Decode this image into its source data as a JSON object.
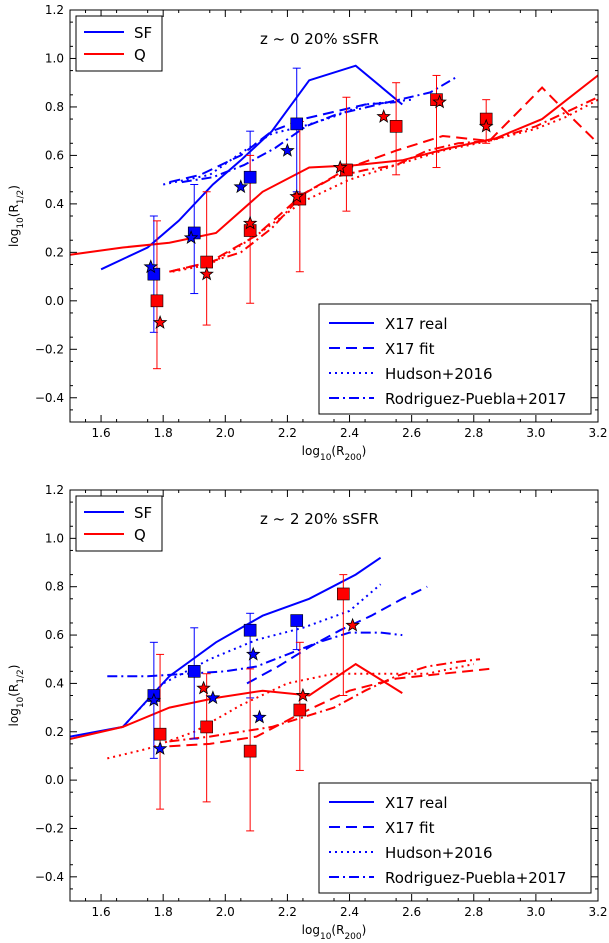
{
  "chart_data": [
    {
      "type": "line",
      "title": "z ~ 0    20% sSFR",
      "xlabel": "log10(R200)",
      "ylabel": "log10(R1/2)",
      "xlim": [
        1.5,
        3.2
      ],
      "ylim": [
        -0.5,
        1.2
      ],
      "xticks": [
        "1.6",
        "1.8",
        "2.0",
        "2.2",
        "2.4",
        "2.6",
        "2.8",
        "3.0",
        "3.2"
      ],
      "yticks": [
        "−0.4",
        "−0.2",
        "0.0",
        "0.2",
        "0.4",
        "0.6",
        "0.8",
        "1.0",
        "1.2"
      ],
      "grid": false,
      "colors": {
        "SF": "#0000ff",
        "Q": "#ff0000"
      },
      "legend_groups": {
        "placement_top": "upper left",
        "top": [
          "SF",
          "Q"
        ],
        "placement_bottom": "lower right",
        "bottom": [
          {
            "label": "X17 real",
            "style": "solid"
          },
          {
            "label": "X17 fit",
            "style": "dashed"
          },
          {
            "label": "Hudson+2016",
            "style": "dotted"
          },
          {
            "label": "Rodriguez-Puebla+2017",
            "style": "dashdot"
          }
        ]
      },
      "series": [
        {
          "group": "SF",
          "style": "solid",
          "x": [
            1.6,
            1.75,
            1.85,
            1.96,
            2.05,
            2.15,
            2.27,
            2.42,
            2.57
          ],
          "y": [
            0.13,
            0.22,
            0.33,
            0.48,
            0.58,
            0.7,
            0.91,
            0.97,
            0.81
          ]
        },
        {
          "group": "SF",
          "style": "dashed",
          "x": [
            1.82,
            1.92,
            2.05,
            2.15,
            2.25,
            2.35,
            2.45,
            2.55
          ],
          "y": [
            0.49,
            0.52,
            0.6,
            0.7,
            0.75,
            0.78,
            0.81,
            0.82
          ]
        },
        {
          "group": "SF",
          "style": "dotted",
          "x": [
            1.8,
            1.95,
            2.05,
            2.15,
            2.25,
            2.35,
            2.45,
            2.6
          ],
          "y": [
            0.48,
            0.52,
            0.61,
            0.69,
            0.72,
            0.76,
            0.81,
            0.83
          ]
        },
        {
          "group": "SF",
          "style": "dashdot",
          "x": [
            1.86,
            1.96,
            2.06,
            2.16,
            2.26,
            2.36,
            2.46,
            2.56,
            2.66,
            2.74
          ],
          "y": [
            0.49,
            0.51,
            0.56,
            0.63,
            0.72,
            0.77,
            0.8,
            0.83,
            0.86,
            0.92
          ]
        },
        {
          "group": "Q",
          "style": "solid",
          "x": [
            1.5,
            1.67,
            1.82,
            1.97,
            2.12,
            2.27,
            2.42,
            2.57,
            2.72,
            2.87,
            3.02,
            3.2
          ],
          "y": [
            0.19,
            0.22,
            0.24,
            0.28,
            0.45,
            0.55,
            0.56,
            0.58,
            0.63,
            0.67,
            0.75,
            0.93
          ]
        },
        {
          "group": "Q",
          "style": "dashed",
          "x": [
            1.82,
            1.95,
            2.1,
            2.25,
            2.4,
            2.55,
            2.7,
            2.85,
            3.02,
            3.12,
            3.2
          ],
          "y": [
            0.12,
            0.16,
            0.27,
            0.44,
            0.55,
            0.62,
            0.68,
            0.66,
            0.88,
            0.75,
            0.65
          ]
        },
        {
          "group": "Q",
          "style": "dotted",
          "x": [
            1.83,
            1.95,
            2.1,
            2.25,
            2.4,
            2.55,
            2.7,
            2.85,
            3.0,
            3.1,
            3.2
          ],
          "y": [
            0.12,
            0.15,
            0.27,
            0.41,
            0.5,
            0.56,
            0.62,
            0.66,
            0.71,
            0.76,
            0.83
          ]
        },
        {
          "group": "Q",
          "style": "dashdot",
          "x": [
            1.82,
            1.95,
            2.05,
            2.15,
            2.25,
            2.35,
            2.45,
            2.55,
            2.65,
            2.75,
            2.85,
            3.0,
            3.1,
            3.2
          ],
          "y": [
            0.12,
            0.16,
            0.2,
            0.3,
            0.44,
            0.51,
            0.54,
            0.56,
            0.62,
            0.65,
            0.66,
            0.72,
            0.78,
            0.84
          ]
        }
      ],
      "markers": [
        {
          "group": "SF",
          "shape": "square",
          "x": 1.77,
          "y": 0.11,
          "err": [
            0.24,
            0.24
          ]
        },
        {
          "group": "SF",
          "shape": "square",
          "x": 1.9,
          "y": 0.28,
          "err": [
            0.25,
            0.2
          ]
        },
        {
          "group": "SF",
          "shape": "square",
          "x": 2.08,
          "y": 0.51,
          "err": [
            0.2,
            0.19
          ]
        },
        {
          "group": "SF",
          "shape": "square",
          "x": 2.23,
          "y": 0.73,
          "err": [
            0.28,
            0.23
          ]
        },
        {
          "group": "Q",
          "shape": "square",
          "x": 1.78,
          "y": 0.0,
          "err": [
            0.28,
            0.33
          ]
        },
        {
          "group": "Q",
          "shape": "square",
          "x": 1.94,
          "y": 0.16,
          "err": [
            0.26,
            0.29
          ]
        },
        {
          "group": "Q",
          "shape": "square",
          "x": 2.08,
          "y": 0.29,
          "err": [
            0.3,
            0.31
          ]
        },
        {
          "group": "Q",
          "shape": "square",
          "x": 2.24,
          "y": 0.42,
          "err": [
            0.3,
            0.32
          ]
        },
        {
          "group": "Q",
          "shape": "square",
          "x": 2.39,
          "y": 0.54,
          "err": [
            0.17,
            0.3
          ]
        },
        {
          "group": "Q",
          "shape": "square",
          "x": 2.55,
          "y": 0.72,
          "err": [
            0.2,
            0.18
          ]
        },
        {
          "group": "Q",
          "shape": "square",
          "x": 2.68,
          "y": 0.83,
          "err": [
            0.28,
            0.1
          ]
        },
        {
          "group": "Q",
          "shape": "square",
          "x": 2.84,
          "y": 0.75,
          "err": [
            0.1,
            0.08
          ]
        },
        {
          "group": "SF",
          "shape": "star",
          "x": 1.76,
          "y": 0.14
        },
        {
          "group": "SF",
          "shape": "star",
          "x": 1.89,
          "y": 0.26
        },
        {
          "group": "SF",
          "shape": "star",
          "x": 2.05,
          "y": 0.47
        },
        {
          "group": "SF",
          "shape": "star",
          "x": 2.2,
          "y": 0.62
        },
        {
          "group": "Q",
          "shape": "star",
          "x": 1.79,
          "y": -0.09
        },
        {
          "group": "Q",
          "shape": "star",
          "x": 1.94,
          "y": 0.11
        },
        {
          "group": "Q",
          "shape": "star",
          "x": 2.08,
          "y": 0.32
        },
        {
          "group": "Q",
          "shape": "star",
          "x": 2.23,
          "y": 0.43
        },
        {
          "group": "Q",
          "shape": "star",
          "x": 2.37,
          "y": 0.55
        },
        {
          "group": "Q",
          "shape": "star",
          "x": 2.51,
          "y": 0.76
        },
        {
          "group": "Q",
          "shape": "star",
          "x": 2.69,
          "y": 0.82
        },
        {
          "group": "Q",
          "shape": "star",
          "x": 2.84,
          "y": 0.72
        }
      ]
    },
    {
      "type": "line",
      "title": "z ~ 2    20% sSFR",
      "xlabel": "log10(R200)",
      "ylabel": "log10(R1/2)",
      "xlim": [
        1.5,
        3.2
      ],
      "ylim": [
        -0.5,
        1.2
      ],
      "xticks": [
        "1.6",
        "1.8",
        "2.0",
        "2.2",
        "2.4",
        "2.6",
        "2.8",
        "3.0",
        "3.2"
      ],
      "yticks": [
        "−0.4",
        "−0.2",
        "0.0",
        "0.2",
        "0.4",
        "0.6",
        "0.8",
        "1.0",
        "1.2"
      ],
      "grid": false,
      "colors": {
        "SF": "#0000ff",
        "Q": "#ff0000"
      },
      "legend_groups": {
        "placement_top": "upper left",
        "top": [
          "SF",
          "Q"
        ],
        "placement_bottom": "lower right",
        "bottom": [
          {
            "label": "X17 real",
            "style": "solid"
          },
          {
            "label": "X17 fit",
            "style": "dashed"
          },
          {
            "label": "Hudson+2016",
            "style": "dotted"
          },
          {
            "label": "Rodriguez-Puebla+2017",
            "style": "dashdot"
          }
        ]
      },
      "series": [
        {
          "group": "SF",
          "style": "solid",
          "x": [
            1.5,
            1.67,
            1.82,
            1.97,
            2.12,
            2.27,
            2.42,
            2.5
          ],
          "y": [
            0.18,
            0.22,
            0.43,
            0.57,
            0.68,
            0.75,
            0.85,
            0.92
          ]
        },
        {
          "group": "SF",
          "style": "dashed",
          "x": [
            2.07,
            2.17,
            2.27,
            2.37,
            2.47,
            2.57,
            2.65
          ],
          "y": [
            0.4,
            0.47,
            0.55,
            0.62,
            0.68,
            0.75,
            0.8
          ]
        },
        {
          "group": "SF",
          "style": "dotted",
          "x": [
            1.67,
            1.8,
            1.95,
            2.1,
            2.25,
            2.4,
            2.5
          ],
          "y": [
            0.22,
            0.4,
            0.5,
            0.58,
            0.63,
            0.7,
            0.81
          ]
        },
        {
          "group": "SF",
          "style": "dashdot",
          "x": [
            1.62,
            1.75,
            1.88,
            2.0,
            2.1,
            2.2,
            2.3,
            2.4,
            2.5,
            2.57
          ],
          "y": [
            0.43,
            0.43,
            0.44,
            0.45,
            0.47,
            0.52,
            0.57,
            0.61,
            0.61,
            0.6
          ]
        },
        {
          "group": "Q",
          "style": "solid",
          "x": [
            1.5,
            1.67,
            1.82,
            1.97,
            2.12,
            2.27,
            2.42,
            2.57
          ],
          "y": [
            0.17,
            0.22,
            0.3,
            0.34,
            0.37,
            0.35,
            0.48,
            0.36
          ]
        },
        {
          "group": "Q",
          "style": "dashed",
          "x": [
            1.82,
            1.95,
            2.1,
            2.25,
            2.4,
            2.55,
            2.7,
            2.85
          ],
          "y": [
            0.14,
            0.15,
            0.18,
            0.28,
            0.37,
            0.42,
            0.44,
            0.46
          ]
        },
        {
          "group": "Q",
          "style": "dotted",
          "x": [
            1.62,
            1.75,
            1.9,
            2.05,
            2.2,
            2.35,
            2.5,
            2.65,
            2.8
          ],
          "y": [
            0.09,
            0.13,
            0.2,
            0.31,
            0.4,
            0.44,
            0.44,
            0.44,
            0.48
          ]
        },
        {
          "group": "Q",
          "style": "dashdot",
          "x": [
            1.82,
            1.95,
            2.05,
            2.15,
            2.25,
            2.35,
            2.45,
            2.55,
            2.65,
            2.75,
            2.82
          ],
          "y": [
            0.16,
            0.18,
            0.2,
            0.22,
            0.26,
            0.3,
            0.37,
            0.43,
            0.47,
            0.49,
            0.5
          ]
        }
      ],
      "markers": [
        {
          "group": "SF",
          "shape": "square",
          "x": 1.77,
          "y": 0.35,
          "err": [
            0.26,
            0.22
          ]
        },
        {
          "group": "SF",
          "shape": "square",
          "x": 1.9,
          "y": 0.45,
          "err": [
            0.28,
            0.18
          ]
        },
        {
          "group": "SF",
          "shape": "square",
          "x": 2.08,
          "y": 0.62,
          "err": [
            0.28,
            0.07
          ]
        },
        {
          "group": "SF",
          "shape": "square",
          "x": 2.23,
          "y": 0.66,
          "err": [
            0.12,
            0.0
          ]
        },
        {
          "group": "Q",
          "shape": "square",
          "x": 1.79,
          "y": 0.19,
          "err": [
            0.31,
            0.33
          ]
        },
        {
          "group": "Q",
          "shape": "square",
          "x": 1.94,
          "y": 0.22,
          "err": [
            0.31,
            0.22
          ]
        },
        {
          "group": "Q",
          "shape": "square",
          "x": 2.08,
          "y": 0.12,
          "err": [
            0.33,
            0.34
          ]
        },
        {
          "group": "Q",
          "shape": "square",
          "x": 2.24,
          "y": 0.29,
          "err": [
            0.25,
            0.28
          ]
        },
        {
          "group": "Q",
          "shape": "square",
          "x": 2.38,
          "y": 0.77,
          "err": [
            0.42,
            0.08
          ]
        },
        {
          "group": "SF",
          "shape": "star",
          "x": 1.77,
          "y": 0.33
        },
        {
          "group": "SF",
          "shape": "star",
          "x": 1.79,
          "y": 0.13
        },
        {
          "group": "SF",
          "shape": "star",
          "x": 1.96,
          "y": 0.34
        },
        {
          "group": "SF",
          "shape": "star",
          "x": 2.09,
          "y": 0.52
        },
        {
          "group": "SF",
          "shape": "star",
          "x": 2.11,
          "y": 0.26
        },
        {
          "group": "Q",
          "shape": "star",
          "x": 1.93,
          "y": 0.38
        },
        {
          "group": "Q",
          "shape": "star",
          "x": 2.25,
          "y": 0.35
        },
        {
          "group": "Q",
          "shape": "star",
          "x": 2.41,
          "y": 0.64
        }
      ]
    }
  ]
}
